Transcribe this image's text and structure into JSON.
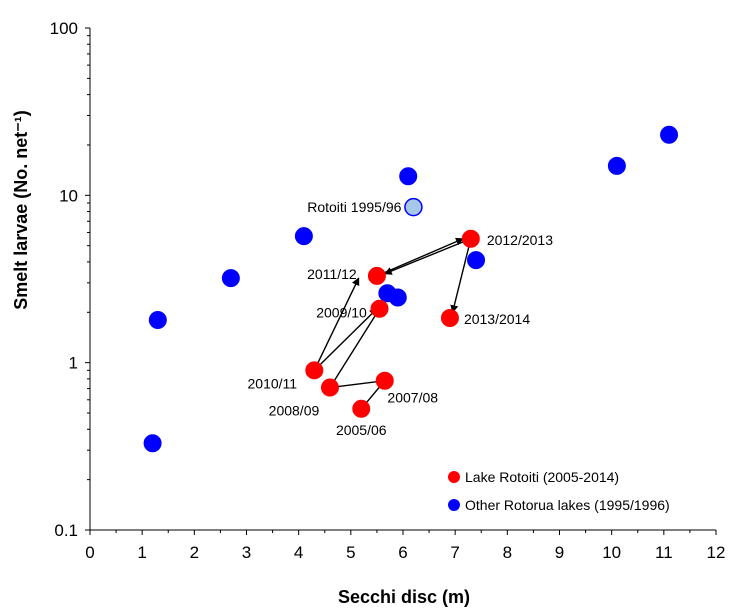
{
  "chart_data": {
    "type": "scatter",
    "xlabel": "Secchi disc (m)",
    "ylabel": "Smelt larvae (No. net⁻¹)",
    "xlim": [
      0,
      12
    ],
    "ylim": [
      0.1,
      100
    ],
    "yscale": "log",
    "x_ticks": [
      "0",
      "1",
      "2",
      "3",
      "4",
      "5",
      "6",
      "7",
      "8",
      "9",
      "10",
      "11",
      "12"
    ],
    "y_ticks": [
      "0.1",
      "1",
      "10",
      "100"
    ],
    "grid": false,
    "legend_position": "bottom-right",
    "series": [
      {
        "name": "Lake Rotoiti (2005-2014)",
        "color": "#ff0000",
        "points": [
          {
            "x": 5.2,
            "y": 0.53,
            "label": "2005/06"
          },
          {
            "x": 5.65,
            "y": 0.78,
            "label": "2007/08"
          },
          {
            "x": 4.6,
            "y": 0.71,
            "label": "2008/09"
          },
          {
            "x": 5.55,
            "y": 2.1,
            "label": "2009/10"
          },
          {
            "x": 4.3,
            "y": 0.9,
            "label": "2010/11"
          },
          {
            "x": 5.5,
            "y": 3.3,
            "label": "2011/12"
          },
          {
            "x": 7.3,
            "y": 5.5,
            "label": "2012/2013"
          },
          {
            "x": 6.9,
            "y": 1.85,
            "label": "2013/2014"
          }
        ]
      },
      {
        "name": "Other Rotorua lakes (1995/1996)",
        "color": "#0000ff",
        "points": [
          {
            "x": 1.2,
            "y": 0.33
          },
          {
            "x": 1.3,
            "y": 1.8
          },
          {
            "x": 2.7,
            "y": 3.2
          },
          {
            "x": 4.1,
            "y": 5.7
          },
          {
            "x": 5.7,
            "y": 2.6
          },
          {
            "x": 5.9,
            "y": 2.45
          },
          {
            "x": 6.1,
            "y": 13
          },
          {
            "x": 7.4,
            "y": 4.1
          },
          {
            "x": 10.1,
            "y": 15
          },
          {
            "x": 11.1,
            "y": 23
          }
        ]
      },
      {
        "color": "#a6c8e6",
        "points": [
          {
            "x": 6.2,
            "y": 8.5,
            "label": "Rotoiti 1995/96"
          }
        ]
      }
    ],
    "arrows": [
      {
        "from": [
          4.3,
          0.9
        ],
        "to": [
          5.15,
          3.2
        ]
      },
      {
        "from": [
          4.3,
          0.9
        ],
        "to": [
          5.5,
          2.1
        ]
      },
      {
        "from": [
          4.6,
          0.71
        ],
        "to": [
          5.55,
          2.1
        ]
      },
      {
        "from": [
          4.6,
          0.71
        ],
        "to": [
          5.65,
          0.78
        ]
      },
      {
        "from": [
          5.2,
          0.53
        ],
        "to": [
          5.65,
          0.78
        ]
      },
      {
        "from": [
          7.3,
          5.5
        ],
        "to": [
          5.65,
          3.4
        ]
      },
      {
        "from": [
          5.5,
          3.3
        ],
        "to": [
          7.15,
          5.5
        ]
      },
      {
        "from": [
          7.3,
          5.5
        ],
        "to": [
          6.95,
          2.0
        ]
      }
    ]
  }
}
